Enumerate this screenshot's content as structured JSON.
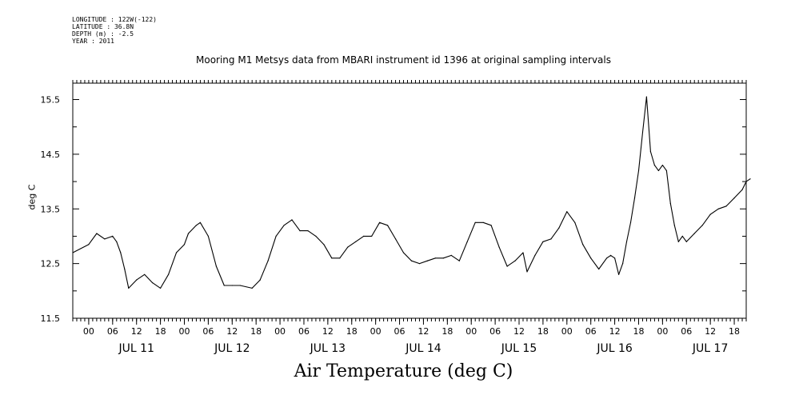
{
  "header": {
    "longitude": "LONGITUDE : 122W(-122)",
    "latitude": "LATITUDE : 36.8N",
    "depth": "DEPTH (m) : -2.5",
    "year": "YEAR : 2011"
  },
  "chart_data": {
    "type": "line",
    "title": "Mooring M1 Metsys data from MBARI instrument id 1396 at original sampling intervals",
    "xlabel": "Air Temperature (deg C)",
    "ylabel": "deg C",
    "ylim": [
      11.5,
      15.8
    ],
    "yticks": [
      11.5,
      12.5,
      13.5,
      14.5,
      15.5
    ],
    "xlim_hours": [
      -4,
      165
    ],
    "x_hour_ticks": [
      "00",
      "06",
      "12",
      "18",
      "00",
      "06",
      "12",
      "18",
      "00",
      "06",
      "12",
      "18",
      "00",
      "06",
      "12",
      "18",
      "00",
      "06",
      "12",
      "18",
      "00",
      "06",
      "12",
      "18",
      "00",
      "06",
      "12",
      "18"
    ],
    "day_labels": [
      "JUL 11",
      "JUL 12",
      "JUL 13",
      "JUL 14",
      "JUL 15",
      "JUL 16",
      "JUL 17"
    ],
    "grid": false,
    "color": "#000000",
    "series": [
      {
        "x": [
          "JUL 10 20:00",
          "JUL 11 00:00",
          "JUL 11 02:00",
          "JUL 11 04:00",
          "JUL 11 06:00",
          "JUL 11 07:00",
          "JUL 11 08:00",
          "JUL 11 09:00",
          "JUL 11 10:00",
          "JUL 11 12:00",
          "JUL 11 14:00",
          "JUL 11 16:00",
          "JUL 11 18:00",
          "JUL 11 20:00",
          "JUL 11 22:00",
          "JUL 12 00:00",
          "JUL 12 01:00",
          "JUL 12 03:00",
          "JUL 12 04:00",
          "JUL 12 06:00",
          "JUL 12 08:00",
          "JUL 12 10:00",
          "JUL 12 12:00",
          "JUL 12 14:00",
          "JUL 12 17:00",
          "JUL 12 19:00",
          "JUL 12 21:00",
          "JUL 12 23:00",
          "JUL 13 01:00",
          "JUL 13 03:00",
          "JUL 13 05:00",
          "JUL 13 07:00",
          "JUL 13 09:00",
          "JUL 13 11:00",
          "JUL 13 13:00",
          "JUL 13 15:00",
          "JUL 13 17:00",
          "JUL 13 19:00",
          "JUL 13 21:00",
          "JUL 13 23:00",
          "JUL 14 01:00",
          "JUL 14 03:00",
          "JUL 14 05:00",
          "JUL 14 07:00",
          "JUL 14 09:00",
          "JUL 14 11:00",
          "JUL 14 13:00",
          "JUL 14 15:00",
          "JUL 14 17:00",
          "JUL 14 19:00",
          "JUL 14 21:00",
          "JUL 14 23:00",
          "JUL 15 01:00",
          "JUL 15 03:00",
          "JUL 15 05:00",
          "JUL 15 07:00",
          "JUL 15 09:00",
          "JUL 15 11:00",
          "JUL 15 13:00",
          "JUL 15 14:00",
          "JUL 15 16:00",
          "JUL 15 18:00",
          "JUL 15 20:00",
          "JUL 15 22:00",
          "JUL 16 00:00",
          "JUL 16 02:00",
          "JUL 16 04:00",
          "JUL 16 06:00",
          "JUL 16 08:00",
          "JUL 16 10:00",
          "JUL 16 11:00",
          "JUL 16 12:00",
          "JUL 16 13:00",
          "JUL 16 14:00",
          "JUL 16 15:00",
          "JUL 16 16:00",
          "JUL 16 17:00",
          "JUL 16 18:00",
          "JUL 16 19:00",
          "JUL 16 20:00",
          "JUL 16 21:00",
          "JUL 16 22:00",
          "JUL 16 23:00",
          "JUL 17 00:00",
          "JUL 17 01:00",
          "JUL 17 02:00",
          "JUL 17 03:00",
          "JUL 17 04:00",
          "JUL 17 05:00",
          "JUL 17 06:00",
          "JUL 17 08:00",
          "JUL 17 10:00",
          "JUL 17 12:00",
          "JUL 17 14:00",
          "JUL 17 16:00",
          "JUL 17 18:00",
          "JUL 17 20:00",
          "JUL 17 21:00",
          "JUL 17 22:00"
        ],
        "y": [
          12.7,
          12.85,
          13.05,
          12.95,
          13.0,
          12.9,
          12.7,
          12.4,
          12.05,
          12.2,
          12.3,
          12.15,
          12.05,
          12.3,
          12.7,
          12.85,
          13.05,
          13.2,
          13.25,
          13.0,
          12.45,
          12.1,
          12.1,
          12.1,
          12.05,
          12.2,
          12.55,
          13.0,
          13.2,
          13.3,
          13.1,
          13.1,
          13.0,
          12.85,
          12.6,
          12.6,
          12.8,
          12.9,
          13.0,
          13.0,
          13.25,
          13.2,
          12.95,
          12.7,
          12.55,
          12.5,
          12.55,
          12.6,
          12.6,
          12.65,
          12.55,
          12.9,
          13.25,
          13.25,
          13.2,
          12.8,
          12.45,
          12.55,
          12.7,
          12.35,
          12.65,
          12.9,
          12.95,
          13.15,
          13.45,
          13.25,
          12.85,
          12.6,
          12.4,
          12.6,
          12.65,
          12.6,
          12.3,
          12.5,
          12.9,
          13.25,
          13.7,
          14.2,
          14.9,
          15.55,
          14.55,
          14.3,
          14.2,
          14.3,
          14.2,
          13.6,
          13.2,
          12.9,
          13.0,
          12.9,
          13.05,
          13.2,
          13.4,
          13.5,
          13.55,
          13.7,
          13.85,
          14.0,
          14.05
        ]
      }
    ]
  }
}
